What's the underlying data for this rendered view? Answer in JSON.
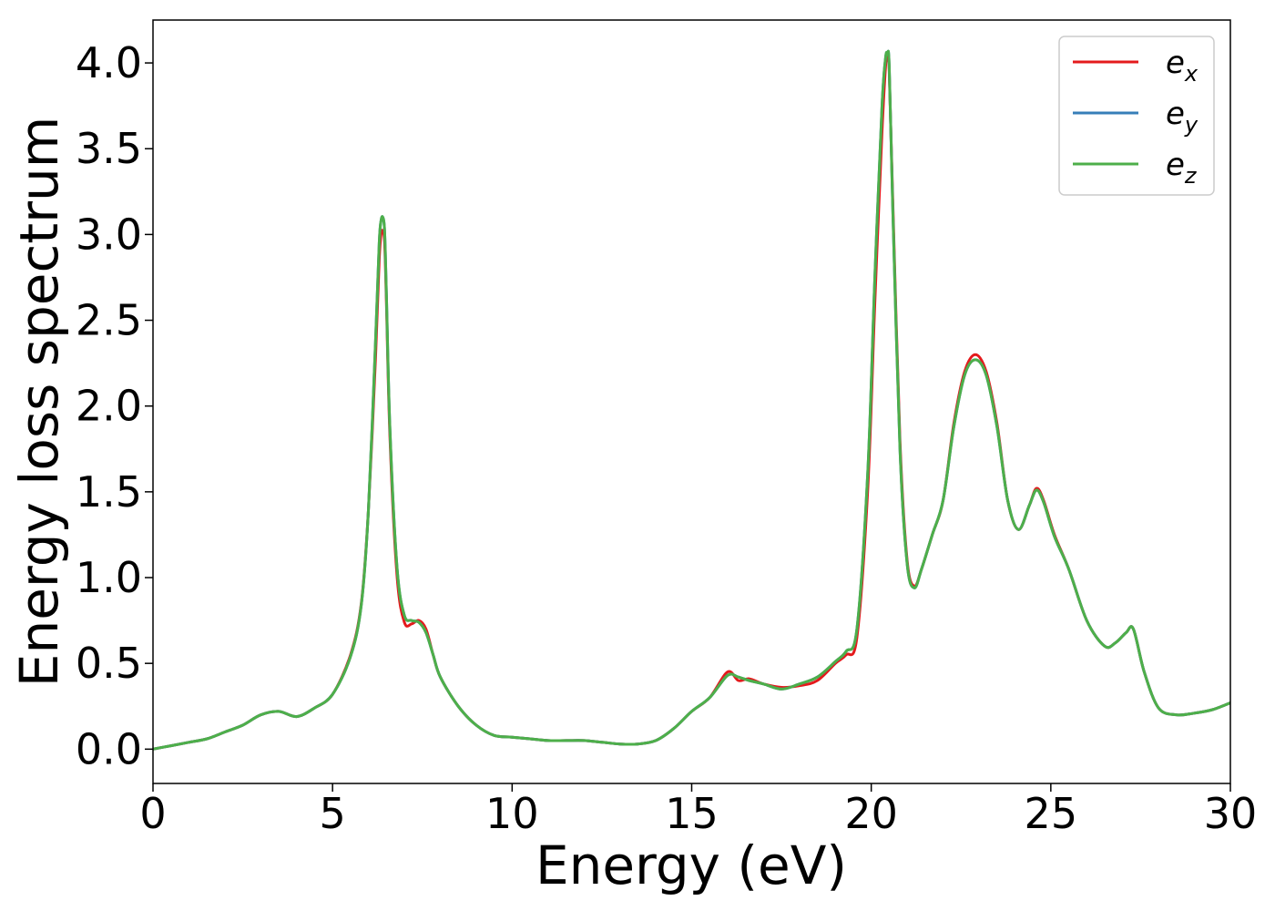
{
  "chart_data": {
    "type": "line",
    "title": "",
    "xlabel": "Energy (eV)",
    "ylabel": "Energy loss spectrum",
    "xlim": [
      0,
      30
    ],
    "ylim": [
      -0.2,
      4.25
    ],
    "xticks": [
      "0",
      "5",
      "10",
      "15",
      "20",
      "25",
      "30"
    ],
    "yticks": [
      "0.0",
      "0.5",
      "1.0",
      "1.5",
      "2.0",
      "2.5",
      "3.0",
      "3.5",
      "4.0"
    ],
    "grid": false,
    "legend_position": "top-right",
    "series": [
      {
        "name": "e_x",
        "legend_base": "e",
        "legend_sub": "x",
        "color": "#e41a1c",
        "x": [
          0,
          0.5,
          1,
          1.5,
          2,
          2.5,
          3,
          3.5,
          4,
          4.5,
          5,
          5.5,
          5.8,
          6.0,
          6.2,
          6.3,
          6.35,
          6.4,
          6.45,
          6.5,
          6.6,
          6.8,
          7.0,
          7.2,
          7.4,
          7.6,
          7.8,
          8,
          8.5,
          9,
          9.5,
          10,
          10.5,
          11,
          11.5,
          12,
          12.5,
          13,
          13.5,
          14,
          14.5,
          15,
          15.5,
          16,
          16.3,
          16.6,
          17,
          17.5,
          18,
          18.5,
          19,
          19.3,
          19.6,
          19.9,
          20.1,
          20.3,
          20.4,
          20.45,
          20.5,
          20.6,
          20.8,
          21.0,
          21.2,
          21.4,
          21.7,
          22,
          22.3,
          22.6,
          22.9,
          23.2,
          23.5,
          23.8,
          24.1,
          24.4,
          24.6,
          24.8,
          25.1,
          25.5,
          26,
          26.5,
          26.8,
          27.1,
          27.3,
          27.6,
          28,
          28.5,
          29,
          29.5,
          30
        ],
        "values": [
          0,
          0.02,
          0.04,
          0.06,
          0.1,
          0.14,
          0.2,
          0.22,
          0.19,
          0.24,
          0.32,
          0.55,
          0.85,
          1.4,
          2.3,
          2.85,
          3.0,
          3.02,
          2.95,
          2.6,
          1.8,
          1.0,
          0.74,
          0.73,
          0.75,
          0.7,
          0.55,
          0.42,
          0.25,
          0.14,
          0.08,
          0.07,
          0.06,
          0.05,
          0.05,
          0.05,
          0.04,
          0.03,
          0.03,
          0.05,
          0.12,
          0.22,
          0.3,
          0.45,
          0.4,
          0.41,
          0.38,
          0.36,
          0.37,
          0.4,
          0.5,
          0.55,
          0.65,
          1.5,
          2.6,
          3.6,
          3.98,
          4.03,
          3.95,
          3.2,
          1.8,
          1.1,
          0.95,
          1.05,
          1.25,
          1.45,
          1.9,
          2.2,
          2.3,
          2.2,
          1.9,
          1.45,
          1.28,
          1.42,
          1.52,
          1.45,
          1.25,
          1.05,
          0.75,
          0.6,
          0.62,
          0.68,
          0.7,
          0.45,
          0.24,
          0.2,
          0.21,
          0.23,
          0.27
        ]
      },
      {
        "name": "e_y",
        "legend_base": "e",
        "legend_sub": "y",
        "color": "#377eb8",
        "x": [
          0,
          0.5,
          1,
          1.5,
          2,
          2.5,
          3,
          3.5,
          4,
          4.5,
          5,
          5.5,
          5.8,
          6.0,
          6.2,
          6.3,
          6.35,
          6.4,
          6.45,
          6.5,
          6.6,
          6.8,
          7.0,
          7.2,
          7.4,
          7.6,
          7.8,
          8,
          8.5,
          9,
          9.5,
          10,
          10.5,
          11,
          11.5,
          12,
          12.5,
          13,
          13.5,
          14,
          14.5,
          15,
          15.5,
          16,
          16.3,
          16.6,
          17,
          17.5,
          18,
          18.5,
          19,
          19.3,
          19.6,
          19.9,
          20.1,
          20.3,
          20.4,
          20.45,
          20.5,
          20.6,
          20.8,
          21.0,
          21.2,
          21.4,
          21.7,
          22,
          22.3,
          22.6,
          22.9,
          23.2,
          23.5,
          23.8,
          24.1,
          24.4,
          24.6,
          24.8,
          25.1,
          25.5,
          26,
          26.5,
          26.8,
          27.1,
          27.3,
          27.6,
          28,
          28.5,
          29,
          29.5,
          30
        ],
        "values": [
          0,
          0.02,
          0.04,
          0.06,
          0.1,
          0.14,
          0.2,
          0.22,
          0.19,
          0.24,
          0.32,
          0.54,
          0.84,
          1.4,
          2.4,
          2.95,
          3.08,
          3.1,
          3.02,
          2.65,
          1.85,
          1.05,
          0.78,
          0.75,
          0.74,
          0.68,
          0.55,
          0.42,
          0.25,
          0.14,
          0.08,
          0.07,
          0.06,
          0.05,
          0.05,
          0.05,
          0.04,
          0.03,
          0.03,
          0.05,
          0.12,
          0.22,
          0.3,
          0.43,
          0.42,
          0.4,
          0.38,
          0.35,
          0.38,
          0.42,
          0.51,
          0.57,
          0.7,
          1.6,
          2.75,
          3.75,
          4.03,
          4.05,
          3.98,
          3.15,
          1.75,
          1.08,
          0.94,
          1.05,
          1.25,
          1.45,
          1.88,
          2.18,
          2.27,
          2.18,
          1.88,
          1.45,
          1.28,
          1.42,
          1.51,
          1.44,
          1.24,
          1.05,
          0.75,
          0.6,
          0.62,
          0.68,
          0.7,
          0.45,
          0.24,
          0.2,
          0.21,
          0.23,
          0.27
        ]
      },
      {
        "name": "e_z",
        "legend_base": "e",
        "legend_sub": "z",
        "color": "#4daf4a",
        "x": [
          0,
          0.5,
          1,
          1.5,
          2,
          2.5,
          3,
          3.5,
          4,
          4.5,
          5,
          5.5,
          5.8,
          6.0,
          6.2,
          6.3,
          6.35,
          6.4,
          6.45,
          6.5,
          6.6,
          6.8,
          7.0,
          7.2,
          7.4,
          7.6,
          7.8,
          8,
          8.5,
          9,
          9.5,
          10,
          10.5,
          11,
          11.5,
          12,
          12.5,
          13,
          13.5,
          14,
          14.5,
          15,
          15.5,
          16,
          16.3,
          16.6,
          17,
          17.5,
          18,
          18.5,
          19,
          19.3,
          19.6,
          19.9,
          20.1,
          20.3,
          20.4,
          20.45,
          20.5,
          20.6,
          20.8,
          21.0,
          21.2,
          21.4,
          21.7,
          22,
          22.3,
          22.6,
          22.9,
          23.2,
          23.5,
          23.8,
          24.1,
          24.4,
          24.6,
          24.8,
          25.1,
          25.5,
          26,
          26.5,
          26.8,
          27.1,
          27.3,
          27.6,
          28,
          28.5,
          29,
          29.5,
          30
        ],
        "values": [
          0,
          0.02,
          0.04,
          0.06,
          0.1,
          0.14,
          0.2,
          0.22,
          0.19,
          0.24,
          0.32,
          0.54,
          0.84,
          1.4,
          2.4,
          2.95,
          3.08,
          3.1,
          3.02,
          2.65,
          1.85,
          1.05,
          0.78,
          0.75,
          0.74,
          0.68,
          0.55,
          0.42,
          0.25,
          0.14,
          0.08,
          0.07,
          0.06,
          0.05,
          0.05,
          0.05,
          0.04,
          0.03,
          0.03,
          0.05,
          0.12,
          0.22,
          0.3,
          0.43,
          0.42,
          0.4,
          0.38,
          0.35,
          0.38,
          0.42,
          0.51,
          0.57,
          0.7,
          1.6,
          2.75,
          3.75,
          4.03,
          4.05,
          3.98,
          3.15,
          1.75,
          1.08,
          0.94,
          1.05,
          1.25,
          1.45,
          1.88,
          2.18,
          2.27,
          2.18,
          1.88,
          1.45,
          1.28,
          1.42,
          1.51,
          1.44,
          1.24,
          1.05,
          0.75,
          0.6,
          0.62,
          0.68,
          0.7,
          0.45,
          0.24,
          0.2,
          0.21,
          0.23,
          0.27
        ]
      }
    ]
  }
}
